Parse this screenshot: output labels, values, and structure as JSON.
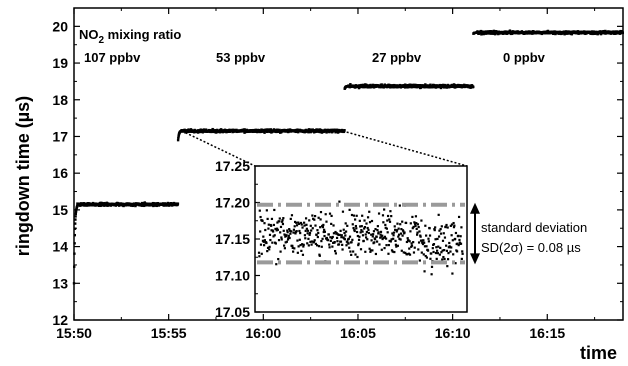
{
  "chart_data": [
    {
      "type": "scatter",
      "xlabel": "time",
      "ylabel": "ringdown time (µs)",
      "xlim": [
        "15:50",
        "16:19"
      ],
      "ylim": [
        12,
        20.5
      ],
      "x_ticks": [
        "15:50",
        "15:55",
        "16:00",
        "16:05",
        "16:10",
        "16:15"
      ],
      "y_ticks": [
        "12",
        "13",
        "14",
        "15",
        "16",
        "17",
        "18",
        "19",
        "20"
      ],
      "annotations": {
        "header": "NO",
        "header_sub": "2",
        "header_rest": " mixing ratio",
        "levels": [
          "107 ppbv",
          "53 ppbv",
          "27 ppbv",
          "0 ppbv"
        ]
      },
      "series": [
        {
          "steps": [
            {
              "from": "15:50",
              "to": "15:55.5",
              "start_value": 13.0,
              "value": 15.15
            },
            {
              "from": "15:55.5",
              "to": "16:04.3",
              "start_value": 16.9,
              "value": 17.15
            },
            {
              "from": "16:04.3",
              "to": "16:11.1",
              "start_value": 18.3,
              "value": 18.37
            },
            {
              "from": "16:11.1",
              "to": "16:19",
              "start_value": 19.8,
              "value": 19.83
            }
          ]
        }
      ]
    },
    {
      "type": "scatter",
      "ylim": [
        17.05,
        17.25
      ],
      "y_ticks": [
        "17.25",
        "17.20",
        "17.15",
        "17.10",
        "17.05"
      ],
      "mean": 17.155,
      "band": [
        17.197,
        17.118
      ],
      "annotation": {
        "line1": "standard deviation",
        "line2": "SD(2σ) = 0.08 µs"
      }
    }
  ]
}
